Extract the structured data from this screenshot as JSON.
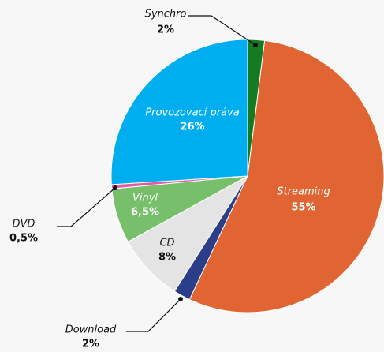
{
  "chart_data": {
    "type": "pie",
    "categories": [
      "Synchro",
      "Streaming",
      "Download",
      "CD",
      "Vinyl",
      "DVD",
      "Provozovací práva"
    ],
    "values": [
      2,
      55,
      2,
      8,
      6.5,
      0.5,
      26
    ],
    "value_labels": [
      "2%",
      "55%",
      "2%",
      "8%",
      "6,5%",
      "0,5%",
      "26%"
    ],
    "colors": [
      "#157a22",
      "#e06532",
      "#2a3e8a",
      "#e4e4e4",
      "#78bf6c",
      "#e55aa3",
      "#00aeef"
    ]
  }
}
